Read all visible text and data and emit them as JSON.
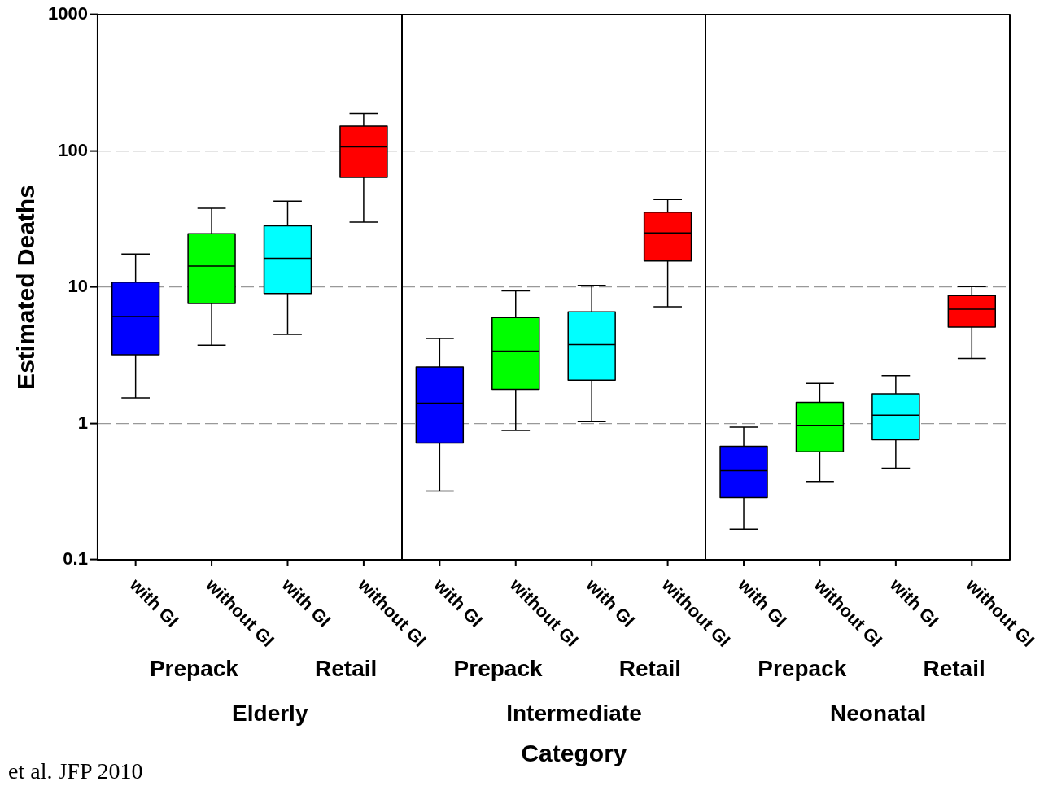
{
  "chart_data": {
    "type": "box",
    "xlabel": "Category",
    "ylabel": "Estimated Deaths",
    "categories": [
      "with GI",
      "without GI",
      "with GI",
      "without GI",
      "with GI",
      "without GI",
      "with GI",
      "without GI",
      "with GI",
      "without GI",
      "with GI",
      "without GI"
    ],
    "colors": [
      "#0000ff",
      "#00ff00",
      "#00ffff",
      "#ff0000",
      "#0000ff",
      "#00ff00",
      "#00ffff",
      "#ff0000",
      "#0000ff",
      "#00ff00",
      "#00ffff",
      "#ff0000"
    ],
    "boxes": [
      {
        "low": 1.54,
        "q1": 3.2,
        "median": 6.1,
        "q3": 10.9,
        "high": 17.5
      },
      {
        "low": 3.76,
        "q1": 7.6,
        "median": 14.3,
        "q3": 24.7,
        "high": 38
      },
      {
        "low": 4.5,
        "q1": 9.0,
        "median": 16.3,
        "q3": 28.2,
        "high": 42.8
      },
      {
        "low": 30,
        "q1": 64,
        "median": 107,
        "q3": 152,
        "high": 188
      },
      {
        "low": 0.32,
        "q1": 0.72,
        "median": 1.41,
        "q3": 2.6,
        "high": 4.2
      },
      {
        "low": 0.89,
        "q1": 1.78,
        "median": 3.4,
        "q3": 6.0,
        "high": 9.4
      },
      {
        "low": 1.03,
        "q1": 2.08,
        "median": 3.8,
        "q3": 6.6,
        "high": 10.3
      },
      {
        "low": 7.2,
        "q1": 15.6,
        "median": 25,
        "q3": 35.5,
        "high": 44
      },
      {
        "low": 0.168,
        "q1": 0.286,
        "median": 0.45,
        "q3": 0.68,
        "high": 0.94
      },
      {
        "low": 0.376,
        "q1": 0.62,
        "median": 0.97,
        "q3": 1.43,
        "high": 1.97
      },
      {
        "low": 0.47,
        "q1": 0.76,
        "median": 1.15,
        "q3": 1.65,
        "high": 2.24
      },
      {
        "low": 3.0,
        "q1": 5.1,
        "median": 6.9,
        "q3": 8.7,
        "high": 10.1
      }
    ],
    "log": true,
    "ylim": [
      0.1,
      1000
    ],
    "yticks": [
      0.1,
      1,
      10,
      100,
      1000
    ],
    "grid": "y",
    "legend": false,
    "annotations": [
      "Prepack",
      "Retail",
      "Prepack",
      "Retail",
      "Prepack",
      "Retail",
      "Elderly",
      "Intermediate",
      "Neonatal",
      "et al. JFP 2010"
    ]
  }
}
